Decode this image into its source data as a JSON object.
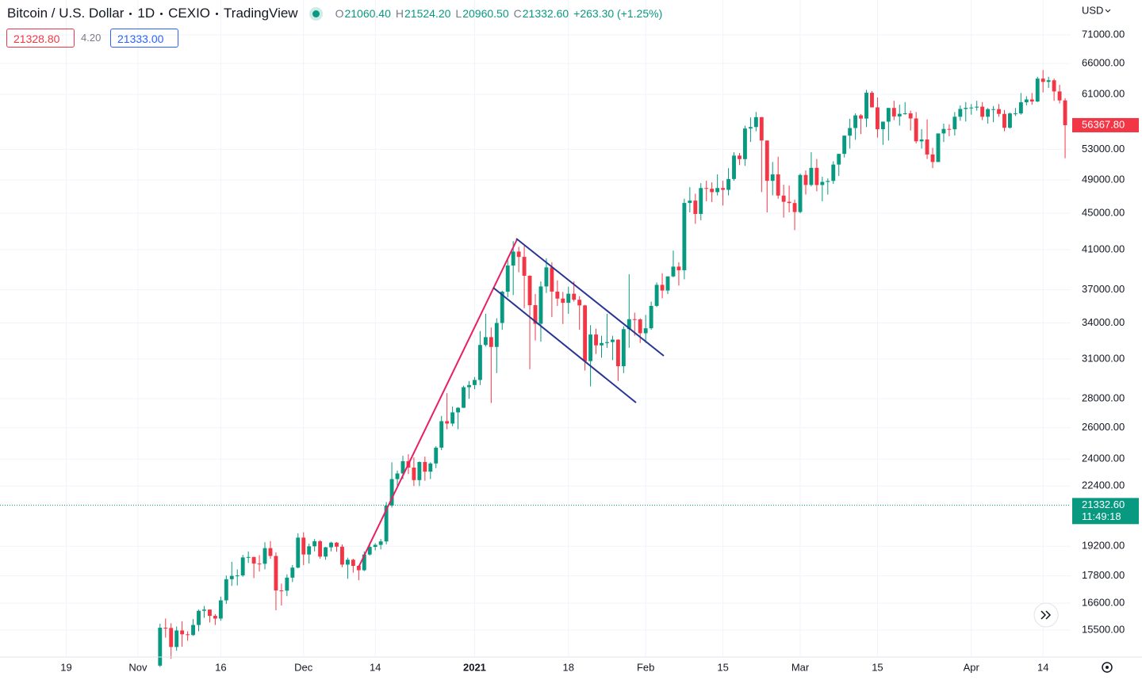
{
  "header": {
    "symbol": "Bitcoin / U.S. Dollar",
    "interval": "1D",
    "exchange": "CEXIO",
    "source": "TradingView",
    "ohlc": [
      {
        "key": "O",
        "value": "21060.40"
      },
      {
        "key": "H",
        "value": "21524.20"
      },
      {
        "key": "L",
        "value": "20960.50"
      },
      {
        "key": "C",
        "value": "21332.60"
      }
    ],
    "change": "+263.30 (+1.25%)",
    "sell": "21328.80",
    "spread": "4.20",
    "buy": "21333.00"
  },
  "currency": "USD",
  "chart_data": {
    "type": "candlestick",
    "log_scale": true,
    "grid": true,
    "up_color": "#089981",
    "down_color": "#f23645",
    "xlim": [
      "2020-10-07",
      "2021-04-19"
    ],
    "ylim": [
      14494,
      77640
    ],
    "yticks": [
      {
        "value": 71000,
        "label": "71000.00"
      },
      {
        "value": 66000,
        "label": "66000.00"
      },
      {
        "value": 61000,
        "label": "61000.00"
      },
      {
        "value": 53000,
        "label": "53000.00"
      },
      {
        "value": 49000,
        "label": "49000.00"
      },
      {
        "value": 45000,
        "label": "45000.00"
      },
      {
        "value": 41000,
        "label": "41000.00"
      },
      {
        "value": 37000,
        "label": "37000.00"
      },
      {
        "value": 34000,
        "label": "34000.00"
      },
      {
        "value": 31000,
        "label": "31000.00"
      },
      {
        "value": 28000,
        "label": "28000.00"
      },
      {
        "value": 26000,
        "label": "26000.00"
      },
      {
        "value": 24000,
        "label": "24000.00"
      },
      {
        "value": 22400,
        "label": "22400.00"
      },
      {
        "value": 19200,
        "label": "19200.00"
      },
      {
        "value": 17800,
        "label": "17800.00"
      },
      {
        "value": 16600,
        "label": "16600.00"
      },
      {
        "value": 15500,
        "label": "15500.00"
      }
    ],
    "xticks": [
      {
        "value": "2020-10-19",
        "label": "19"
      },
      {
        "value": "2020-11-01",
        "label": "Nov"
      },
      {
        "value": "2020-11-16",
        "label": "16"
      },
      {
        "value": "2020-12-01",
        "label": "Dec"
      },
      {
        "value": "2020-12-14",
        "label": "14"
      },
      {
        "value": "2021-01-01",
        "label": "2021"
      },
      {
        "value": "2021-01-18",
        "label": "18"
      },
      {
        "value": "2021-02-01",
        "label": "Feb"
      },
      {
        "value": "2021-02-15",
        "label": "15"
      },
      {
        "value": "2021-03-01",
        "label": "Mar"
      },
      {
        "value": "2021-03-15",
        "label": "15"
      },
      {
        "value": "2021-04-01",
        "label": "Apr"
      },
      {
        "value": "2021-04-14",
        "label": "14"
      }
    ],
    "last_price": {
      "value": 56367.8,
      "label": "56367.80"
    },
    "current_price": {
      "value": 21332.6,
      "label": "21332.60",
      "countdown": "11:49:18"
    },
    "x": [
      "2020-11-05",
      "2020-11-06",
      "2020-11-07",
      "2020-11-08",
      "2020-11-09",
      "2020-11-10",
      "2020-11-11",
      "2020-11-12",
      "2020-11-13",
      "2020-11-14",
      "2020-11-15",
      "2020-11-16",
      "2020-11-17",
      "2020-11-18",
      "2020-11-19",
      "2020-11-20",
      "2020-11-21",
      "2020-11-22",
      "2020-11-23",
      "2020-11-24",
      "2020-11-25",
      "2020-11-26",
      "2020-11-27",
      "2020-11-28",
      "2020-11-29",
      "2020-11-30",
      "2020-12-01",
      "2020-12-02",
      "2020-12-03",
      "2020-12-04",
      "2020-12-05",
      "2020-12-06",
      "2020-12-07",
      "2020-12-08",
      "2020-12-09",
      "2020-12-10",
      "2020-12-11",
      "2020-12-12",
      "2020-12-13",
      "2020-12-14",
      "2020-12-15",
      "2020-12-16",
      "2020-12-17",
      "2020-12-18",
      "2020-12-19",
      "2020-12-20",
      "2020-12-21",
      "2020-12-22",
      "2020-12-23",
      "2020-12-24",
      "2020-12-25",
      "2020-12-26",
      "2020-12-27",
      "2020-12-28",
      "2020-12-29",
      "2020-12-30",
      "2020-12-31",
      "2021-01-01",
      "2021-01-02",
      "2021-01-03",
      "2021-01-04",
      "2021-01-05",
      "2021-01-06",
      "2021-01-07",
      "2021-01-08",
      "2021-01-09",
      "2021-01-10",
      "2021-01-11",
      "2021-01-12",
      "2021-01-13",
      "2021-01-14",
      "2021-01-15",
      "2021-01-16",
      "2021-01-17",
      "2021-01-18",
      "2021-01-19",
      "2021-01-20",
      "2021-01-21",
      "2021-01-22",
      "2021-01-23",
      "2021-01-24",
      "2021-01-25",
      "2021-01-26",
      "2021-01-27",
      "2021-01-28",
      "2021-01-29",
      "2021-01-30",
      "2021-01-31",
      "2021-02-01",
      "2021-02-02",
      "2021-02-03",
      "2021-02-04",
      "2021-02-05",
      "2021-02-06",
      "2021-02-07",
      "2021-02-08",
      "2021-02-09",
      "2021-02-10",
      "2021-02-11",
      "2021-02-12",
      "2021-02-13",
      "2021-02-14",
      "2021-02-15",
      "2021-02-16",
      "2021-02-17",
      "2021-02-18",
      "2021-02-19",
      "2021-02-20",
      "2021-02-21",
      "2021-02-22",
      "2021-02-23",
      "2021-02-24",
      "2021-02-25",
      "2021-02-26",
      "2021-02-27",
      "2021-02-28",
      "2021-03-01",
      "2021-03-02",
      "2021-03-03",
      "2021-03-04",
      "2021-03-05",
      "2021-03-06",
      "2021-03-07",
      "2021-03-08",
      "2021-03-09",
      "2021-03-10",
      "2021-03-11",
      "2021-03-12",
      "2021-03-13",
      "2021-03-14",
      "2021-03-15",
      "2021-03-16",
      "2021-03-17",
      "2021-03-18",
      "2021-03-19",
      "2021-03-20",
      "2021-03-21",
      "2021-03-22",
      "2021-03-23",
      "2021-03-24",
      "2021-03-25",
      "2021-03-26",
      "2021-03-27",
      "2021-03-28",
      "2021-03-29",
      "2021-03-30",
      "2021-03-31",
      "2021-04-01",
      "2021-04-02",
      "2021-04-03",
      "2021-04-04",
      "2021-04-05",
      "2021-04-06",
      "2021-04-07",
      "2021-04-08",
      "2021-04-09",
      "2021-04-10",
      "2021-04-11",
      "2021-04-12",
      "2021-04-13",
      "2021-04-14",
      "2021-04-15",
      "2021-04-16",
      "2021-04-17",
      "2021-04-18"
    ],
    "open": [
      14150,
      15590,
      15580,
      14840,
      15480,
      15330,
      15300,
      15700,
      16280,
      16330,
      16070,
      15960,
      16720,
      17650,
      17800,
      17820,
      18660,
      18680,
      18370,
      18360,
      19110,
      18730,
      17150,
      17140,
      17720,
      18180,
      19630,
      18800,
      19200,
      19450,
      18700,
      19150,
      19380,
      19180,
      18320,
      18550,
      18260,
      18060,
      18800,
      19170,
      19270,
      19440,
      21310,
      22800,
      23130,
      23870,
      23480,
      22740,
      23820,
      23240,
      23730,
      24710,
      26440,
      26280,
      27040,
      27360,
      28840,
      29000,
      29380,
      32130,
      32780,
      31970,
      33990,
      36820,
      39370,
      40800,
      40250,
      38350,
      35570,
      33920,
      37320,
      39180,
      36830,
      36180,
      35790,
      36630,
      36070,
      35550,
      30830,
      33000,
      32100,
      32290,
      32370,
      32570,
      30430,
      33460,
      34320,
      34300,
      33110,
      33530,
      35510,
      37470,
      36930,
      38290,
      39260,
      38900,
      46200,
      46480,
      44920,
      48000,
      47910,
      47500,
      48000,
      47780,
      49120,
      52150,
      51680,
      55890,
      56100,
      57540,
      54200,
      48890,
      49700,
      47080,
      46340,
      46190,
      45140,
      49630,
      48380,
      50540,
      48370,
      48760,
      48880,
      50970,
      52380,
      54880,
      55960,
      57800,
      57330,
      61240,
      59000,
      55790,
      56880,
      58910,
      57650,
      58030,
      58100,
      57350,
      54090,
      54340,
      52300,
      51300,
      55190,
      55830,
      55780,
      57600,
      58760,
      58920,
      58970,
      59100,
      57600,
      58730,
      58730,
      58020,
      56000,
      58090,
      58090,
      59770,
      60200,
      59890,
      63500,
      62970,
      63230,
      61450,
      60060
    ],
    "high": [
      15750,
      15960,
      15770,
      15640,
      15850,
      15450,
      15940,
      16330,
      16480,
      16330,
      16140,
      16880,
      17820,
      18450,
      18100,
      18780,
      18950,
      18700,
      18770,
      19400,
      19460,
      18900,
      17450,
      17870,
      18300,
      19850,
      19900,
      19330,
      19560,
      19500,
      19170,
      19420,
      19410,
      19290,
      18650,
      18600,
      18280,
      18950,
      19400,
      19350,
      19560,
      21500,
      23800,
      23300,
      24200,
      24300,
      24100,
      23850,
      24150,
      23800,
      24800,
      26800,
      28400,
      27450,
      27400,
      28950,
      29300,
      29600,
      33300,
      34800,
      33600,
      34400,
      36900,
      40200,
      41900,
      41300,
      41400,
      38400,
      36600,
      37800,
      40100,
      39700,
      37900,
      36800,
      37300,
      37800,
      36400,
      35600,
      33800,
      33500,
      32900,
      34800,
      32900,
      32600,
      33700,
      38500,
      34900,
      34400,
      34700,
      35900,
      37700,
      38600,
      38300,
      40900,
      39700,
      46700,
      48100,
      47300,
      48600,
      48900,
      48700,
      49700,
      48900,
      50500,
      52600,
      52500,
      56300,
      57500,
      58300,
      57550,
      54200,
      51300,
      52000,
      48400,
      48300,
      46600,
      49800,
      50200,
      52600,
      51700,
      49400,
      49200,
      51400,
      52400,
      54900,
      57300,
      58100,
      58000,
      61700,
      61500,
      60500,
      56900,
      58900,
      60000,
      59400,
      59800,
      58500,
      58300,
      55800,
      57200,
      53200,
      55100,
      56600,
      56500,
      58300,
      59300,
      59800,
      59500,
      60000,
      59800,
      58900,
      59200,
      59500,
      58600,
      58200,
      58900,
      61200,
      60700,
      61200,
      63800,
      64900,
      63800,
      63500,
      62500,
      60400
    ],
    "low": [
      14100,
      15200,
      14400,
      14700,
      14850,
      15080,
      15270,
      15450,
      15990,
      15800,
      15700,
      15870,
      16570,
      17350,
      17370,
      17760,
      18400,
      17700,
      18000,
      18100,
      18600,
      16300,
      16500,
      16900,
      17520,
      18150,
      18300,
      18370,
      18950,
      18600,
      18550,
      18950,
      18930,
      18200,
      17670,
      17950,
      17600,
      18020,
      18750,
      19000,
      19050,
      19300,
      21200,
      22400,
      22800,
      23100,
      22400,
      22400,
      22700,
      22800,
      23450,
      24550,
      25900,
      26100,
      25900,
      27350,
      28000,
      28700,
      29000,
      32000,
      27700,
      29900,
      33400,
      36300,
      36500,
      38700,
      35300,
      30200,
      32500,
      32400,
      36700,
      34500,
      35500,
      33900,
      34800,
      35900,
      33400,
      30100,
      28900,
      31400,
      31100,
      31900,
      30900,
      29300,
      29900,
      31900,
      32900,
      32300,
      32300,
      33400,
      35400,
      36200,
      36600,
      38200,
      37400,
      38000,
      45100,
      43800,
      44200,
      46400,
      46300,
      47100,
      45900,
      47100,
      48900,
      50900,
      50800,
      54000,
      55500,
      47500,
      45100,
      47100,
      46700,
      44500,
      45100,
      43100,
      45000,
      47200,
      48200,
      47600,
      46400,
      47200,
      48500,
      49500,
      51900,
      53100,
      54300,
      55100,
      56100,
      59000,
      54600,
      53600,
      54200,
      57100,
      56300,
      57900,
      55600,
      53800,
      53100,
      51700,
      50500,
      51300,
      54000,
      54800,
      54900,
      57000,
      56900,
      57900,
      58500,
      57100,
      56600,
      56800,
      57600,
      55500,
      55900,
      57700,
      57900,
      59300,
      59400,
      59800,
      61300,
      62000,
      60000,
      59600,
      51800
    ],
    "close": [
      15590,
      15580,
      14840,
      15480,
      15330,
      15300,
      15700,
      16280,
      16330,
      16070,
      15960,
      16720,
      17650,
      17800,
      17820,
      18660,
      18680,
      18370,
      18360,
      19110,
      18730,
      17150,
      17140,
      17720,
      18180,
      19630,
      18800,
      19200,
      19450,
      18700,
      19150,
      19380,
      19180,
      18320,
      18550,
      18260,
      18060,
      18800,
      19170,
      19270,
      19440,
      21310,
      22800,
      23130,
      23870,
      23480,
      22740,
      23820,
      23240,
      23730,
      24710,
      26440,
      26280,
      27040,
      27360,
      28840,
      29000,
      29380,
      32130,
      32780,
      31970,
      33990,
      36820,
      39370,
      40800,
      40250,
      38350,
      35570,
      33920,
      37320,
      39180,
      36830,
      36180,
      35790,
      36630,
      36070,
      35550,
      30830,
      33000,
      32100,
      32290,
      32370,
      32570,
      30430,
      33460,
      34320,
      34300,
      33110,
      33530,
      35510,
      37470,
      36930,
      38290,
      39260,
      38900,
      46200,
      46480,
      44920,
      48000,
      47910,
      47500,
      48000,
      47780,
      49120,
      52150,
      51680,
      55890,
      56100,
      57540,
      54200,
      48890,
      49700,
      47080,
      46340,
      46190,
      45140,
      49630,
      48380,
      50540,
      48370,
      48760,
      48880,
      50970,
      52380,
      54880,
      55960,
      57800,
      57330,
      61240,
      59000,
      55790,
      56880,
      58910,
      57650,
      58030,
      58100,
      57350,
      54090,
      54340,
      52300,
      51300,
      55190,
      55830,
      55780,
      57600,
      58760,
      58920,
      58970,
      59100,
      57600,
      58730,
      58730,
      58020,
      56000,
      58090,
      58090,
      59770,
      60200,
      59890,
      63500,
      62970,
      63230,
      61450,
      60060,
      56367.8
    ]
  }
}
